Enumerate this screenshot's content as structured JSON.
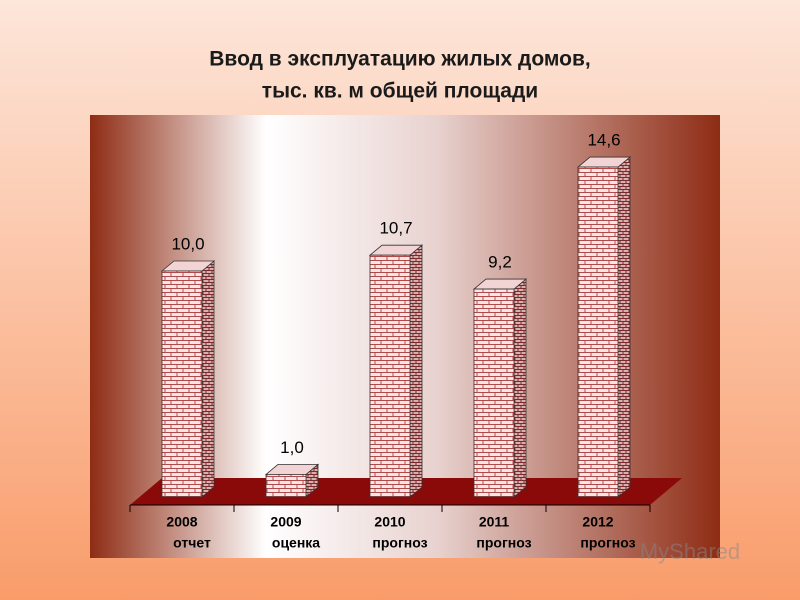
{
  "chart_data": {
    "type": "bar",
    "title": [
      "Ввод в эксплуатацию жилых домов,",
      "тыс. кв. м общей площади"
    ],
    "categories": [
      [
        "2008",
        "отчет"
      ],
      [
        "2009",
        "оценка"
      ],
      [
        "2010",
        "прогноз"
      ],
      [
        "2011",
        "прогноз"
      ],
      [
        "2012",
        "прогноз"
      ]
    ],
    "values": [
      10.0,
      1.0,
      10.7,
      9.2,
      14.6
    ],
    "value_labels": [
      "10,0",
      "1,0",
      "10,7",
      "9,2",
      "14,6"
    ],
    "color": "#fbe6e6",
    "watermark": "MyShared"
  }
}
